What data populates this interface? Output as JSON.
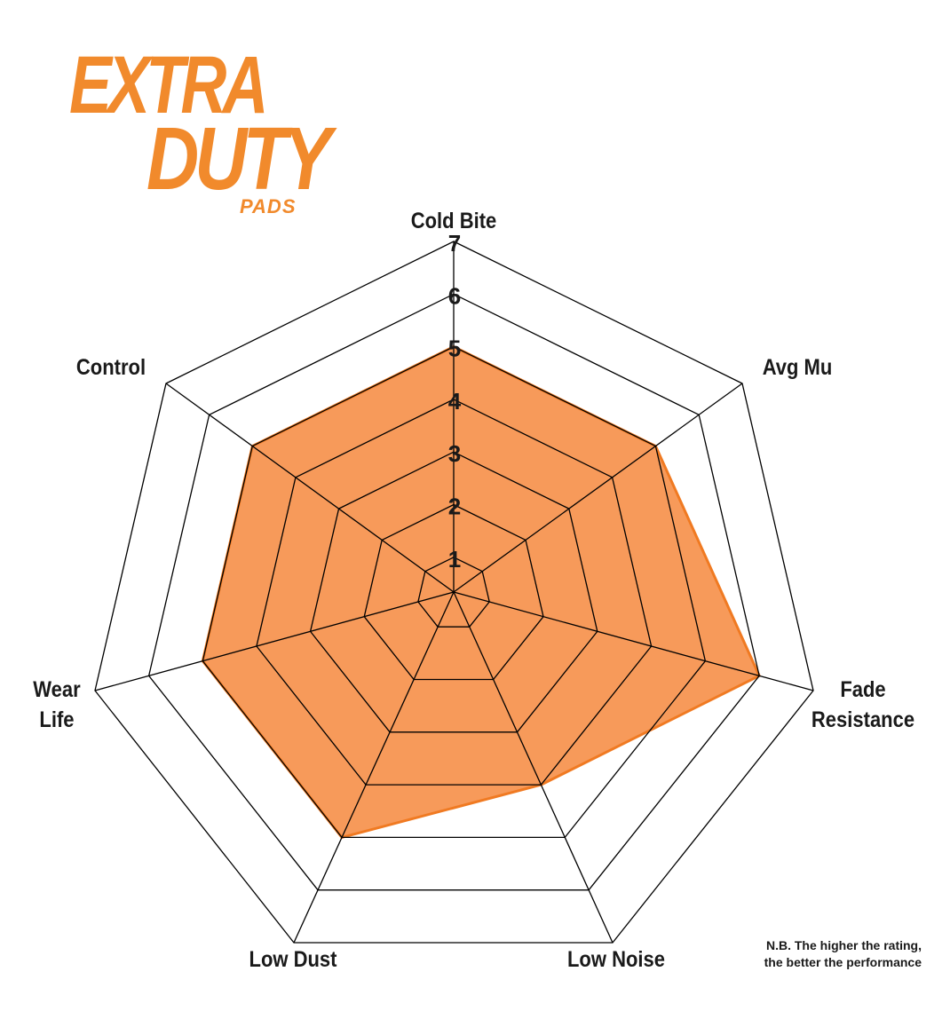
{
  "logo": {
    "line1": "EXTRA",
    "line2": "DUTY",
    "line3": "PADS"
  },
  "note": {
    "line1": "N.B. The higher the rating,",
    "line2": "the better the performance"
  },
  "chart_data": {
    "type": "radar",
    "categories": [
      "Cold Bite",
      "Avg Mu",
      "Fade Resistance",
      "Low Noise",
      "Low Dust",
      "Wear Life",
      "Control"
    ],
    "values": [
      5,
      5,
      6,
      4,
      5,
      5,
      5
    ],
    "rlim": [
      0,
      7
    ],
    "ticks": [
      "1",
      "2",
      "3",
      "4",
      "5",
      "6",
      "7"
    ],
    "fill_color": "#f79a5a",
    "line_color": "#f07a22",
    "grid_color": "#000000"
  }
}
